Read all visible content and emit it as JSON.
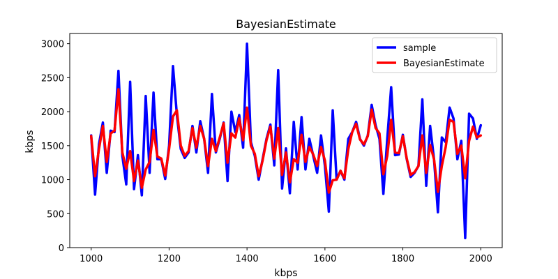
{
  "chart_data": {
    "type": "line",
    "title": "BayesianEstimate",
    "xlabel": "kbps",
    "ylabel": "kbps",
    "xlim": [
      945,
      2055
    ],
    "ylim": [
      0,
      3150
    ],
    "xticks": [
      1000,
      1200,
      1400,
      1600,
      1800,
      2000
    ],
    "yticks": [
      0,
      500,
      1000,
      1500,
      2000,
      2500,
      3000
    ],
    "grid": false,
    "legend_position": "top-right",
    "x": [
      1000,
      1010,
      1020,
      1030,
      1040,
      1050,
      1060,
      1070,
      1080,
      1090,
      1100,
      1110,
      1120,
      1130,
      1140,
      1150,
      1160,
      1170,
      1180,
      1190,
      1200,
      1210,
      1220,
      1230,
      1240,
      1250,
      1260,
      1270,
      1280,
      1290,
      1300,
      1310,
      1320,
      1330,
      1340,
      1350,
      1360,
      1370,
      1380,
      1390,
      1400,
      1410,
      1420,
      1430,
      1440,
      1450,
      1460,
      1470,
      1480,
      1490,
      1500,
      1510,
      1520,
      1530,
      1540,
      1550,
      1560,
      1570,
      1580,
      1590,
      1600,
      1610,
      1620,
      1630,
      1640,
      1650,
      1660,
      1670,
      1680,
      1690,
      1700,
      1710,
      1720,
      1730,
      1740,
      1750,
      1760,
      1770,
      1780,
      1790,
      1800,
      1810,
      1820,
      1830,
      1840,
      1850,
      1860,
      1870,
      1880,
      1890,
      1900,
      1910,
      1920,
      1930,
      1940,
      1950,
      1960,
      1970,
      1980,
      1990,
      2000
    ],
    "series": [
      {
        "name": "sample",
        "color": "#0000ff",
        "values": [
          1650,
          780,
          1520,
          1840,
          1100,
          1720,
          1700,
          2600,
          1350,
          930,
          2440,
          860,
          1360,
          770,
          2230,
          1100,
          2280,
          1300,
          1300,
          1010,
          1500,
          2670,
          1950,
          1450,
          1320,
          1400,
          1790,
          1400,
          1860,
          1600,
          1100,
          2260,
          1400,
          1600,
          1840,
          980,
          2000,
          1700,
          1950,
          1470,
          3000,
          1550,
          1350,
          1000,
          1300,
          1600,
          1810,
          1210,
          2610,
          870,
          1460,
          800,
          1850,
          1150,
          1920,
          1150,
          1600,
          1350,
          1100,
          1650,
          1200,
          530,
          2020,
          1000,
          1130,
          1000,
          1600,
          1700,
          1850,
          1600,
          1500,
          1650,
          2100,
          1800,
          1600,
          790,
          1600,
          2360,
          1360,
          1370,
          1660,
          1300,
          1040,
          1100,
          1200,
          2180,
          910,
          1790,
          1300,
          520,
          1620,
          1550,
          2060,
          1900,
          1300,
          1570,
          140,
          1970,
          1900,
          1600,
          1800
        ],
        "values_note": ""
      },
      {
        "name": "BayesianEstimate",
        "color": "#ff0000",
        "values": [
          1640,
          1050,
          1450,
          1790,
          1260,
          1680,
          1720,
          2330,
          1400,
          1160,
          1420,
          980,
          1280,
          880,
          1150,
          1260,
          1730,
          1340,
          1310,
          1060,
          1450,
          1930,
          2020,
          1500,
          1350,
          1420,
          1760,
          1470,
          1790,
          1600,
          1200,
          1600,
          1420,
          1620,
          1830,
          1250,
          1680,
          1620,
          1900,
          1580,
          2060,
          1500,
          1380,
          1050,
          1280,
          1580,
          1780,
          1310,
          1760,
          1070,
          1400,
          960,
          1300,
          1250,
          1660,
          1260,
          1480,
          1370,
          1200,
          1480,
          1280,
          810,
          990,
          1000,
          1130,
          1020,
          1450,
          1700,
          1820,
          1590,
          1520,
          1640,
          2030,
          1760,
          1680,
          1080,
          1350,
          1880,
          1400,
          1390,
          1640,
          1310,
          1070,
          1110,
          1200,
          1650,
          1100,
          1510,
          1300,
          820,
          1200,
          1480,
          1880,
          1850,
          1380,
          1500,
          1020,
          1570,
          1780,
          1620,
          1650
        ]
      }
    ]
  }
}
